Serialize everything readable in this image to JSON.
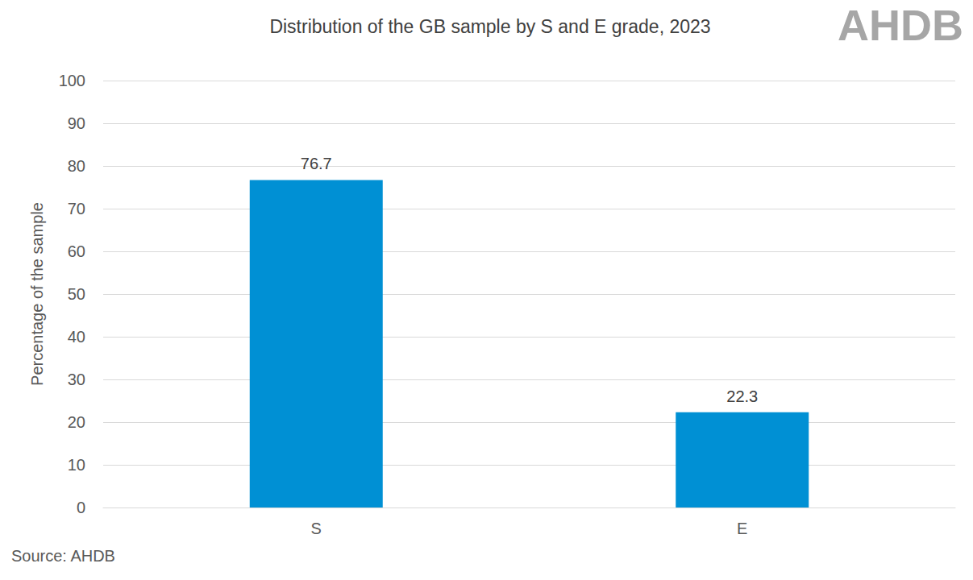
{
  "chart_data": {
    "type": "bar",
    "title": "Distribution of the GB sample by S and E grade, 2023",
    "y_label": "Percentage of the sample",
    "categories": [
      "S",
      "E"
    ],
    "values": [
      76.7,
      22.3
    ],
    "color": "#0090d4",
    "ylim": [
      0,
      100
    ],
    "yticks": [
      0,
      10,
      20,
      30,
      40,
      50,
      60,
      70,
      80,
      90,
      100
    ],
    "grid": true,
    "data_labels": true,
    "source": "Source: AHDB",
    "logo": "AHDB"
  }
}
